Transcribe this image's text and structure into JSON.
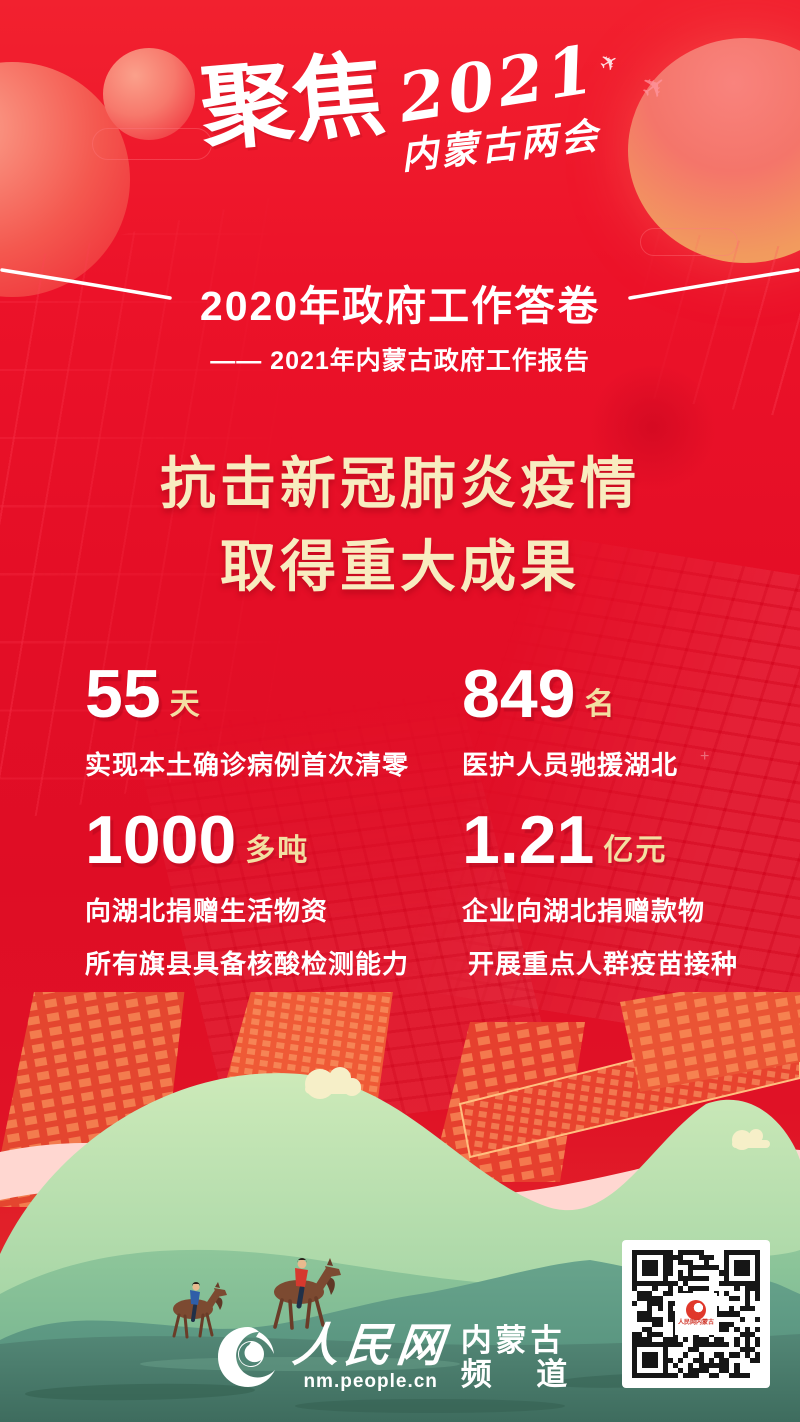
{
  "brand": {
    "focus": "聚焦",
    "year": "2021",
    "event": "内蒙古两会"
  },
  "header": {
    "title": "2020年政府工作答卷",
    "subtitle": "—— 2021年内蒙古政府工作报告"
  },
  "headline": {
    "line1": "抗击新冠肺炎疫情",
    "line2": "取得重大成果"
  },
  "stats": [
    {
      "value": "55",
      "unit": "天",
      "desc": "实现本土确诊病例首次清零"
    },
    {
      "value": "849",
      "unit": "名",
      "desc": "医护人员驰援湖北"
    },
    {
      "value": "1000",
      "unit": "多吨",
      "desc": "向湖北捐赠生活物资"
    },
    {
      "value": "1.21",
      "unit": "亿元",
      "desc": "企业向湖北捐赠款物"
    }
  ],
  "notes": [
    "所有旗县具备核酸检测能力",
    "开展重点人群疫苗接种"
  ],
  "footer": {
    "site_name": "人民网",
    "site_url": "nm.people.cn",
    "channel_line1": "内蒙古",
    "channel_line2": "频 道"
  },
  "qr": {
    "label": "人民网内蒙古"
  },
  "colors": {
    "background_red": "#e40e26",
    "headline_cream": "#f8ecc0",
    "unit_gold": "#f3dfa2",
    "hill_light_green": "#bfe3b2",
    "hill_teal": "#5c9483",
    "foreground_green": "#4d8272",
    "ribbon_pink": "#ffd7d1",
    "city_orange": "#ef5a36"
  }
}
